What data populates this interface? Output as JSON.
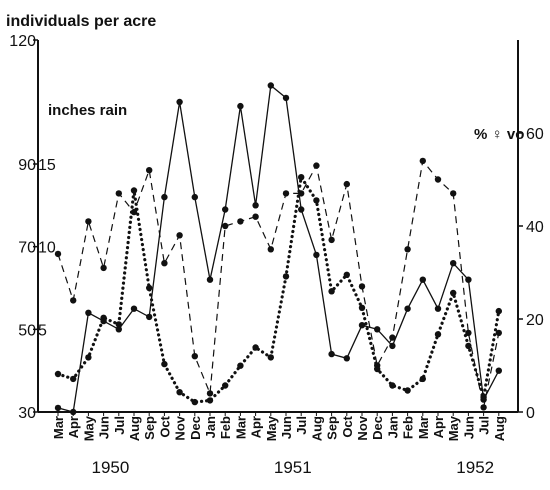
{
  "chart_data": {
    "type": "line",
    "title": "",
    "ylabel_left_top": "individuals per acre",
    "ylabel_left_inner": "inches rain",
    "ylabel_right": "% ♀ vo",
    "left_outer_ticks": [
      "120",
      "90",
      "70",
      "50",
      "30"
    ],
    "left_inner_ticks": [
      "15",
      "10",
      "5"
    ],
    "right_ticks": [
      "60",
      "40",
      "20",
      "0"
    ],
    "ylim_individuals": [
      30,
      120
    ],
    "ylim_percent": [
      0,
      80
    ],
    "ylim_rain": [
      0,
      22.5
    ],
    "grid": false,
    "x": [
      "Mar",
      "Apr",
      "May",
      "Jun",
      "Jul",
      "Aug",
      "Sep",
      "Oct",
      "Nov",
      "Dec",
      "Jan",
      "Feb",
      "Mar",
      "Apr",
      "May",
      "Jun",
      "Jul",
      "Aug",
      "Sep",
      "Oct",
      "Nov",
      "Dec",
      "Jan",
      "Feb",
      "Mar",
      "Apr",
      "May",
      "Jun",
      "Jul",
      "Aug"
    ],
    "year_labels": [
      {
        "label": "1950",
        "start_index": 2
      },
      {
        "label": "1951",
        "start_index": 14
      },
      {
        "label": "1952",
        "start_index": 26
      }
    ],
    "series": [
      {
        "style": "solid",
        "axis": "individuals",
        "values": [
          31,
          30,
          54,
          52,
          50,
          55,
          53,
          82,
          105,
          82,
          62,
          79,
          104,
          80,
          109,
          106,
          79,
          68,
          44,
          43,
          51,
          50,
          46,
          55,
          62,
          55,
          66,
          62,
          33,
          40
        ]
      },
      {
        "style": "dashed",
        "axis": "percent",
        "values": [
          34,
          24,
          41,
          31,
          47,
          43,
          52,
          32,
          38,
          12,
          4,
          40,
          41,
          42,
          35,
          47,
          47,
          53,
          37,
          49,
          27,
          10,
          16,
          35,
          54,
          50,
          47,
          17,
          1,
          17
        ]
      },
      {
        "style": "dotted",
        "axis": "rain",
        "values": [
          2.3,
          2.0,
          3.3,
          5.7,
          5.3,
          13.4,
          7.5,
          2.9,
          1.2,
          0.6,
          0.7,
          1.6,
          2.8,
          3.9,
          3.3,
          8.2,
          14.2,
          12.8,
          7.3,
          8.3,
          6.3,
          2.6,
          1.6,
          1.3,
          2.0,
          4.7,
          7.2,
          4.0,
          0.9,
          6.1
        ]
      }
    ]
  }
}
